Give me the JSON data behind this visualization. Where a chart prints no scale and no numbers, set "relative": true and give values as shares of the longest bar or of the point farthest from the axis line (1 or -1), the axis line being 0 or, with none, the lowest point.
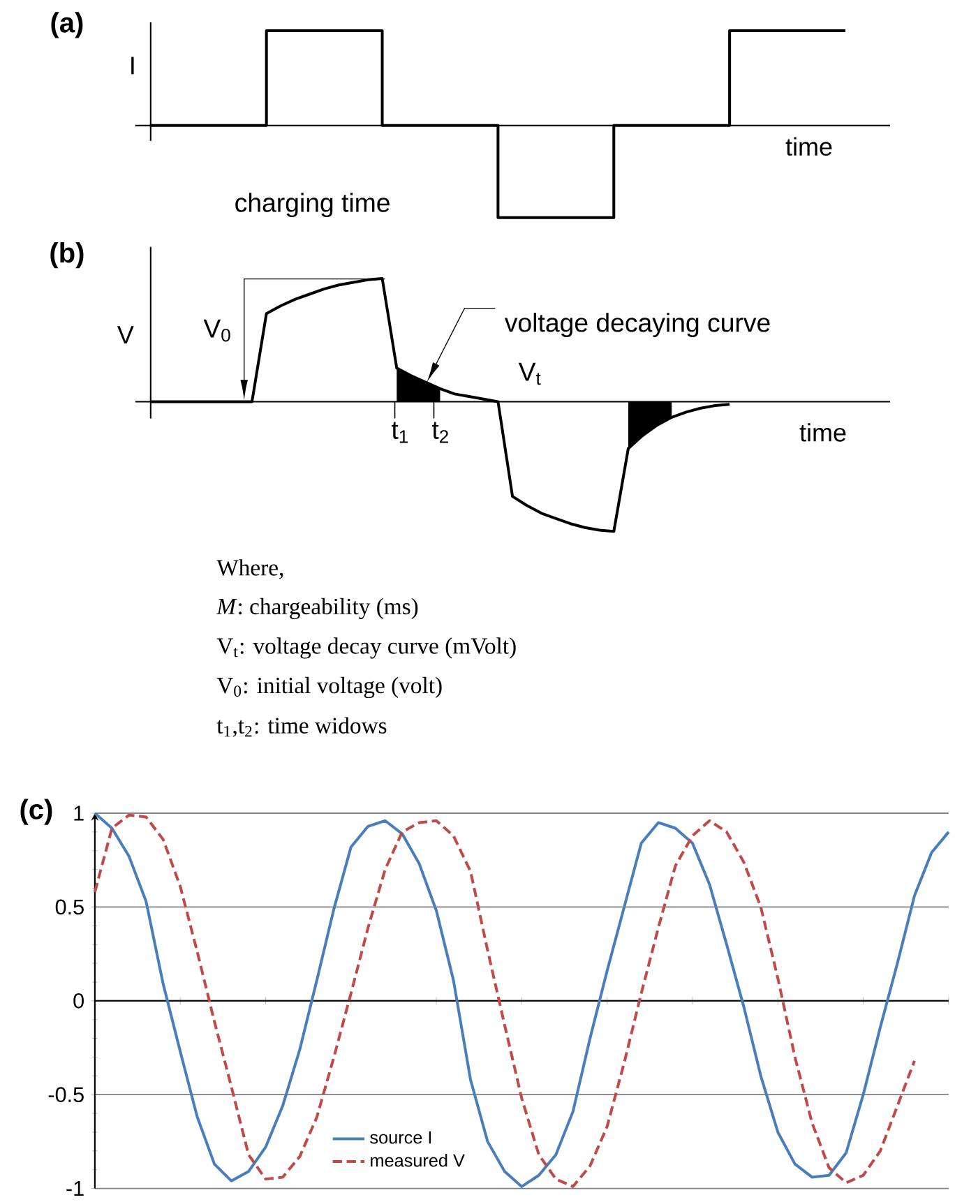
{
  "chart_data": [
    {
      "type": "step",
      "relative": true,
      "title": "(a)",
      "ylabel": "I",
      "xlabel": "time",
      "annotations": [
        "charging time"
      ],
      "categories": [
        null,
        null,
        null,
        null,
        null,
        null,
        null
      ],
      "values": [
        0,
        1,
        0,
        -0.97,
        0,
        1,
        1
      ],
      "color": "#000000"
    },
    {
      "type": "line",
      "relative": true,
      "title": "(b)",
      "ylabel": "V",
      "xlabel": "time",
      "annotations": [
        "V$_{0}$",
        "voltage decaying curve",
        "V$_{t}$",
        "t$_{1}$",
        "t$_{2}$"
      ],
      "categories": [
        null,
        null,
        null,
        null,
        null,
        null,
        null,
        null,
        null,
        null,
        null,
        null,
        null,
        null,
        null,
        null,
        null,
        null,
        null,
        null,
        null,
        null,
        null,
        null,
        null,
        null,
        null,
        null,
        null,
        null,
        null,
        null,
        null,
        null,
        null,
        null,
        null,
        null,
        null,
        null,
        null,
        null,
        null,
        null,
        null,
        null,
        null,
        null,
        null,
        null,
        null,
        null
      ],
      "series": [
        {
          "type": "line",
          "color": "#000000",
          "values": [
            0,
            0,
            0,
            0,
            0,
            0,
            0,
            0,
            0.68,
            0.74,
            0.79,
            0.83,
            0.87,
            0.9,
            0.92,
            0.94,
            0.95,
            0.26,
            0.2,
            0.15,
            0.1,
            0.06,
            0.04,
            0.02,
            0,
            -0.73,
            -0.8,
            -0.86,
            -0.9,
            -0.94,
            -0.97,
            -0.99,
            -1,
            -0.36,
            -0.26,
            -0.18,
            -0.12,
            -0.08,
            -0.05,
            -0.03,
            -0.02,
            null,
            null,
            null,
            null,
            null,
            null,
            null,
            null,
            null,
            null,
            null
          ]
        },
        {
          "type": "area",
          "color": "#000000",
          "values": [
            null,
            null,
            null,
            null,
            null,
            null,
            null,
            null,
            null,
            null,
            null,
            null,
            null,
            null,
            null,
            null,
            null,
            0.26,
            0.2,
            0.15,
            0.1,
            null,
            null,
            null,
            null,
            null,
            null,
            null,
            null,
            null,
            null,
            null,
            null,
            -0.36,
            -0.26,
            -0.18,
            -0.12,
            null,
            null,
            null,
            null,
            null,
            null,
            null,
            null,
            null,
            null,
            null,
            null,
            null,
            null,
            null
          ]
        }
      ]
    },
    {
      "type": "other",
      "annotations": [
        "Where,",
        "*M*: chargeability (ms)",
        "V$_{t}$: voltage decay curve (mVolt)",
        "V$_{0}$: initial voltage (volt)",
        "t$_{1}$,t$_{2}$: time widows"
      ]
    },
    {
      "type": "line",
      "title": "(c)",
      "categories": [
        null,
        null,
        null,
        null,
        null,
        null,
        null,
        null,
        null,
        null,
        null,
        null,
        null,
        null,
        null,
        null,
        null,
        null,
        null,
        null,
        null,
        null,
        null,
        null,
        null,
        null,
        null,
        null,
        null,
        null,
        null,
        null,
        null,
        null,
        null,
        null,
        null,
        null,
        null,
        null,
        null,
        null,
        null,
        null,
        null,
        null,
        null,
        null,
        null,
        null,
        null
      ],
      "ylim": [
        -1,
        1
      ],
      "yticks": [
        -1,
        -0.5,
        0,
        0.5,
        1
      ],
      "grid": "y",
      "legend": "bottom left",
      "series": [
        {
          "name": "source I",
          "color": "#4a7ebb",
          "line_style": "solid",
          "values": [
            1,
            0.92,
            0.77,
            0.53,
            0.09,
            -0.27,
            -0.62,
            -0.87,
            -0.96,
            -0.91,
            -0.78,
            -0.56,
            -0.26,
            0.11,
            0.49,
            0.82,
            0.93,
            0.96,
            0.89,
            0.73,
            0.48,
            0.11,
            -0.42,
            -0.75,
            -0.91,
            -0.99,
            -0.93,
            -0.82,
            -0.59,
            -0.2,
            0.16,
            0.5,
            0.84,
            0.95,
            0.92,
            0.84,
            0.62,
            0.3,
            -0.03,
            -0.4,
            -0.7,
            -0.87,
            -0.94,
            -0.93,
            -0.81,
            -0.5,
            -0.14,
            0.2,
            0.56,
            0.79,
            0.9
          ]
        },
        {
          "name": "measured V",
          "color": "#be4b48",
          "line_style": "dashed",
          "values": [
            0.58,
            0.92,
            0.99,
            0.98,
            0.86,
            0.61,
            0.26,
            -0.11,
            -0.46,
            -0.82,
            -0.95,
            -0.94,
            -0.83,
            -0.62,
            -0.3,
            0.04,
            0.39,
            0.7,
            0.9,
            0.95,
            0.96,
            0.88,
            0.69,
            0.27,
            -0.13,
            -0.52,
            -0.82,
            -0.95,
            -0.99,
            -0.88,
            -0.67,
            -0.33,
            0.04,
            0.39,
            0.72,
            0.88,
            0.96,
            0.9,
            0.74,
            0.5,
            0.12,
            -0.3,
            -0.65,
            -0.89,
            -0.97,
            -0.93,
            -0.8,
            -0.56,
            -0.32,
            null,
            null
          ]
        }
      ]
    }
  ]
}
